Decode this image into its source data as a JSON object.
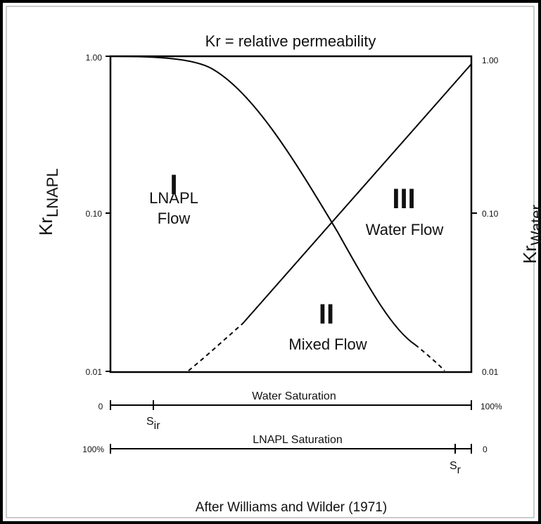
{
  "title": "Kr = relative permeability",
  "left_axis": {
    "label": "Kr",
    "subscript": "LNAPL",
    "ticks": [
      "1.00",
      "0.10",
      "0.01"
    ]
  },
  "right_axis": {
    "label": "Kr",
    "subscript": "Water",
    "ticks": [
      "1.00",
      "0.10",
      "0.01"
    ]
  },
  "regions": [
    {
      "numeral": "I",
      "lines": [
        "LNAPL",
        "Flow"
      ]
    },
    {
      "numeral": "II",
      "lines": [
        "Mixed Flow"
      ]
    },
    {
      "numeral": "III",
      "lines": [
        "Water Flow"
      ]
    }
  ],
  "water_saturation": {
    "label": "Water Saturation",
    "start": "0",
    "end": "100%",
    "marker": {
      "base": "S",
      "sub": "ir"
    }
  },
  "lnapl_saturation": {
    "label": "LNAPL Saturation",
    "start": "100%",
    "end": "0",
    "marker": {
      "base": "S",
      "sub": "r"
    }
  },
  "citation": "After Williams and Wilder (1971)"
}
